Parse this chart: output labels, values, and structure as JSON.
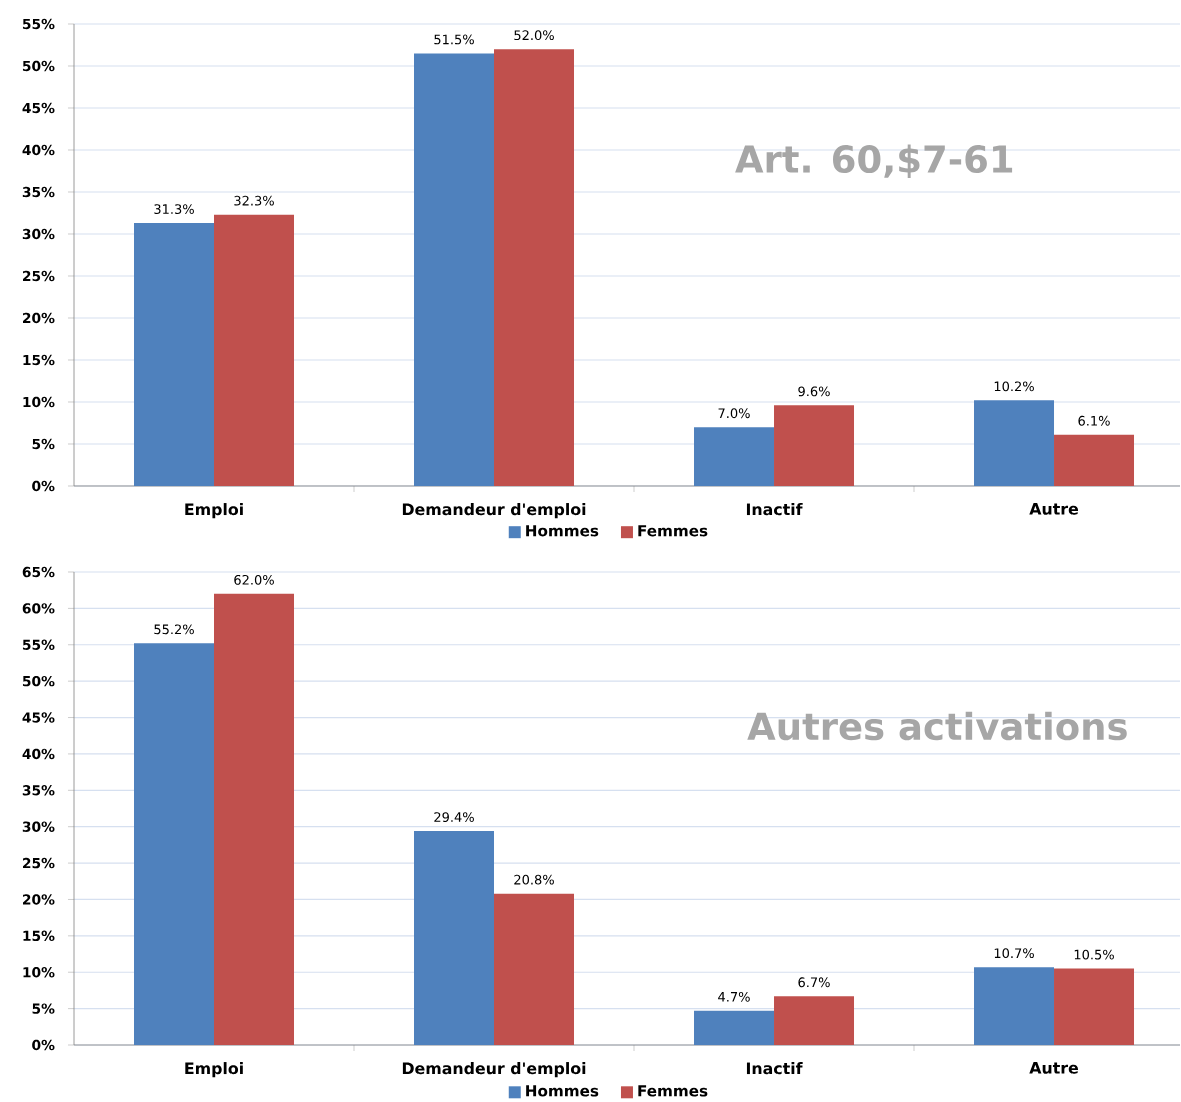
{
  "chart_data": [
    {
      "type": "bar",
      "title": "Art. 60,$7-61",
      "categories": [
        "Emploi",
        "Demandeur d'emploi",
        "Inactif",
        "Autre"
      ],
      "series": [
        {
          "name": "Hommes",
          "color": "#4f81bd",
          "values": [
            31.3,
            51.5,
            7.0,
            10.2
          ],
          "value_labels": [
            "31.3%",
            "51.5%",
            "7.0%",
            "10.2%"
          ]
        },
        {
          "name": "Femmes",
          "color": "#c0504d",
          "values": [
            32.3,
            52.0,
            9.6,
            6.1
          ],
          "value_labels": [
            "32.3%",
            "52.0%",
            "9.6%",
            "6.1%"
          ]
        }
      ],
      "ylim": [
        0,
        55
      ],
      "yticks": [
        {
          "value": 0,
          "label": "0%"
        },
        {
          "value": 5,
          "label": "5%"
        },
        {
          "value": 10,
          "label": "10%"
        },
        {
          "value": 15,
          "label": "15%"
        },
        {
          "value": 20,
          "label": "20%"
        },
        {
          "value": 25,
          "label": "25%"
        },
        {
          "value": 30,
          "label": "30%"
        },
        {
          "value": 35,
          "label": "35%"
        },
        {
          "value": 40,
          "label": "40%"
        },
        {
          "value": 45,
          "label": "45%"
        },
        {
          "value": 50,
          "label": "50%"
        },
        {
          "value": 55,
          "label": "55%"
        }
      ],
      "grid": "y",
      "legend": "bottom"
    },
    {
      "type": "bar",
      "title": "Autres activations",
      "categories": [
        "Emploi",
        "Demandeur d'emploi",
        "Inactif",
        "Autre"
      ],
      "series": [
        {
          "name": "Hommes",
          "color": "#4f81bd",
          "values": [
            55.2,
            29.4,
            4.7,
            10.7
          ],
          "value_labels": [
            "55.2%",
            "29.4%",
            "4.7%",
            "10.7%"
          ]
        },
        {
          "name": "Femmes",
          "color": "#c0504d",
          "values": [
            62.0,
            20.8,
            6.7,
            10.5
          ],
          "value_labels": [
            "62.0%",
            "20.8%",
            "6.7%",
            "10.5%"
          ]
        }
      ],
      "ylim": [
        0,
        65
      ],
      "yticks": [
        {
          "value": 0,
          "label": "0%"
        },
        {
          "value": 5,
          "label": "5%"
        },
        {
          "value": 10,
          "label": "10%"
        },
        {
          "value": 15,
          "label": "15%"
        },
        {
          "value": 20,
          "label": "20%"
        },
        {
          "value": 25,
          "label": "25%"
        },
        {
          "value": 30,
          "label": "30%"
        },
        {
          "value": 35,
          "label": "35%"
        },
        {
          "value": 40,
          "label": "40%"
        },
        {
          "value": 45,
          "label": "45%"
        },
        {
          "value": 50,
          "label": "50%"
        },
        {
          "value": 55,
          "label": "55%"
        },
        {
          "value": 60,
          "label": "60%"
        },
        {
          "value": 65,
          "label": "65%"
        }
      ],
      "grid": "y",
      "legend": "bottom"
    }
  ]
}
